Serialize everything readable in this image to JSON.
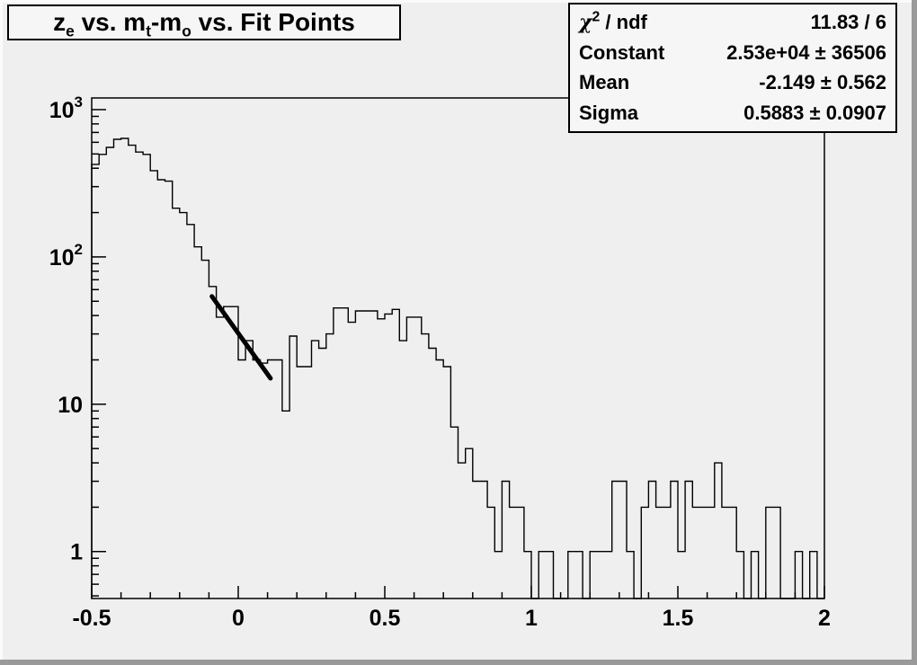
{
  "canvas": {
    "bg_color": "#efefef",
    "bevel_light_color": "#fbfbfb",
    "bevel_dark_color": "#9a9a9a",
    "box_fill_color": "#f6f6f6",
    "line_color": "#000000"
  },
  "title_box": {
    "parts": [
      {
        "text": "z",
        "sub": "e"
      },
      {
        "text": " vs. m",
        "sub": "t"
      },
      {
        "text": "-m",
        "sub": "o"
      },
      {
        "text": " vs. Fit Points",
        "sub": ""
      }
    ]
  },
  "stats_box": {
    "chi": {
      "base": "χ",
      "exp": "2",
      "rest": " / ndf"
    },
    "rows": [
      {
        "label": "",
        "value": "11.83 / 6"
      },
      {
        "label": "Constant",
        "value": "2.53e+04 ± 36506"
      },
      {
        "label": "Mean",
        "value": "-2.149 ± 0.562"
      },
      {
        "label": "Sigma",
        "value": "0.5883 ± 0.0907"
      }
    ]
  },
  "chart_data": {
    "type": "bar",
    "subtype": "step-histogram",
    "title": "z_e vs. m_t-m_o vs. Fit Points",
    "xlabel": "",
    "ylabel": "",
    "xlim": [
      -0.5,
      2.0
    ],
    "ylim": [
      0.48,
      1200
    ],
    "yscale": "log",
    "grid": false,
    "x_start": -0.5,
    "bin_width": 0.025,
    "bins": [
      425,
      497,
      554,
      629,
      638,
      573,
      515,
      497,
      385,
      334,
      327,
      214,
      200,
      166,
      117,
      95,
      63,
      39,
      46,
      46,
      20,
      27,
      20,
      19,
      20,
      20,
      9,
      29,
      18,
      18,
      27,
      24,
      30,
      45,
      45,
      36,
      43,
      43,
      43,
      38,
      41,
      44,
      27,
      39,
      39,
      30,
      24,
      20,
      18,
      7,
      4,
      5,
      3,
      3,
      2,
      1,
      3,
      2,
      2,
      1,
      0,
      1,
      1,
      0,
      0,
      1,
      1,
      0,
      1,
      1,
      1,
      3,
      3,
      1,
      0,
      2,
      3,
      2,
      2,
      3,
      1,
      3,
      2,
      2,
      2,
      4,
      2,
      2,
      1,
      0,
      1,
      0,
      2,
      2,
      0,
      0,
      1,
      0,
      1,
      0
    ],
    "x_ticks": [
      -0.5,
      0,
      0.5,
      1,
      1.5,
      2
    ],
    "x_tick_labels": [
      "-0.5",
      "0",
      "0.5",
      "1",
      "1.5",
      "2"
    ],
    "x_minor_tick_step": 0.1,
    "y_ticks": [
      1,
      10,
      100,
      1000
    ],
    "y_tick_labels": [
      {
        "base": "1"
      },
      {
        "base": "10"
      },
      {
        "base": "10",
        "exp": "2"
      },
      {
        "base": "10",
        "exp": "3"
      }
    ],
    "fit_line": {
      "x": [
        -0.09,
        0.11
      ],
      "y": [
        54,
        15
      ],
      "color": "#000000"
    },
    "fit_results": {
      "chi2_ndf": "11.83 / 6",
      "constant": "2.53e+04 ± 36506",
      "mean": "-2.149 ± 0.562",
      "sigma": "0.5883 ± 0.0907"
    }
  }
}
